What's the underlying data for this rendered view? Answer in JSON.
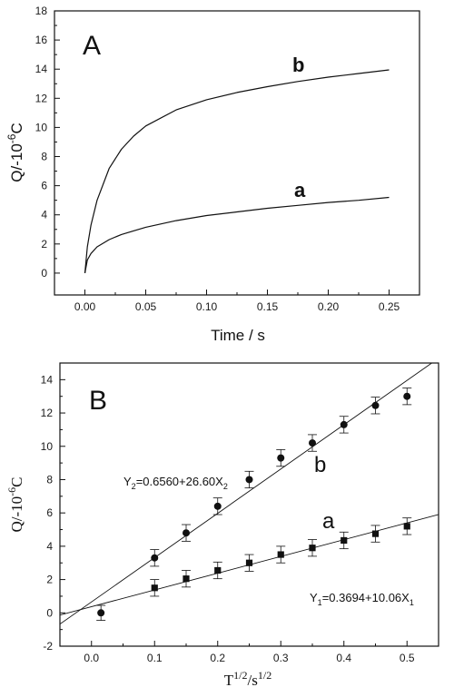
{
  "chart_data": [
    {
      "panel": "A",
      "type": "line",
      "xlabel": "Time / s",
      "ylabel": "Q/-10",
      "ylabel_exponent": "-6",
      "ylabel_unit": "C",
      "xlim": [
        -0.025,
        0.275
      ],
      "ylim": [
        -1.5,
        18
      ],
      "x_ticks": [
        0.0,
        0.05,
        0.1,
        0.15,
        0.2,
        0.25
      ],
      "x_tick_labels": [
        "0.00",
        "0.05",
        "0.10",
        "0.15",
        "0.20",
        "0.25"
      ],
      "y_ticks": [
        0,
        2,
        4,
        6,
        8,
        10,
        12,
        14,
        16,
        18
      ],
      "y_tick_labels": [
        "0",
        "2",
        "4",
        "6",
        "8",
        "10",
        "12",
        "14",
        "16",
        "18"
      ],
      "series": [
        {
          "name": "a",
          "x": [
            0,
            0.002,
            0.005,
            0.01,
            0.02,
            0.03,
            0.05,
            0.075,
            0.1,
            0.125,
            0.15,
            0.175,
            0.2,
            0.225,
            0.25
          ],
          "y": [
            0.0,
            0.9,
            1.35,
            1.8,
            2.3,
            2.65,
            3.15,
            3.6,
            3.95,
            4.2,
            4.45,
            4.65,
            4.85,
            5.0,
            5.2
          ]
        },
        {
          "name": "b",
          "x": [
            0,
            0.002,
            0.005,
            0.01,
            0.02,
            0.03,
            0.04,
            0.05,
            0.075,
            0.1,
            0.125,
            0.15,
            0.175,
            0.2,
            0.225,
            0.25
          ],
          "y": [
            0.0,
            1.8,
            3.3,
            5.0,
            7.2,
            8.5,
            9.4,
            10.1,
            11.2,
            11.9,
            12.4,
            12.8,
            13.15,
            13.45,
            13.7,
            13.95
          ]
        }
      ]
    },
    {
      "panel": "B",
      "type": "scatter",
      "xlabel": "T",
      "xlabel_sup1": "1/2",
      "xlabel_mid": "/s",
      "xlabel_sup2": "1/2",
      "ylabel": "Q/-10",
      "ylabel_exponent": "-6",
      "ylabel_unit": "C",
      "xlim": [
        -0.05,
        0.55
      ],
      "ylim": [
        -2,
        15
      ],
      "x_ticks": [
        0.0,
        0.1,
        0.2,
        0.3,
        0.4,
        0.5
      ],
      "x_tick_labels": [
        "0.0",
        "0.1",
        "0.2",
        "0.3",
        "0.4",
        "0.5"
      ],
      "y_ticks": [
        -2,
        0,
        2,
        4,
        6,
        8,
        10,
        12,
        14
      ],
      "y_tick_labels": [
        "-2",
        "0",
        "2",
        "4",
        "6",
        "8",
        "10",
        "12",
        "14"
      ],
      "series": [
        {
          "name": "a",
          "marker": "square",
          "x": [
            0.1,
            0.15,
            0.2,
            0.25,
            0.3,
            0.35,
            0.4,
            0.45,
            0.5
          ],
          "y": [
            1.5,
            2.05,
            2.55,
            3.0,
            3.5,
            3.9,
            4.35,
            4.75,
            5.2
          ],
          "error": 0.5,
          "fit": {
            "intercept": 0.3694,
            "slope": 10.06,
            "equation": "Y1=0.3694+10.06X1"
          }
        },
        {
          "name": "b",
          "marker": "circle",
          "x": [
            0.1,
            0.15,
            0.2,
            0.25,
            0.3,
            0.35,
            0.4,
            0.45,
            0.5
          ],
          "y": [
            3.3,
            4.8,
            6.4,
            8.0,
            9.3,
            10.2,
            11.3,
            12.45,
            13.0
          ],
          "error": 0.5,
          "fit": {
            "intercept": 0.656,
            "slope": 26.6,
            "equation": "Y2=0.6560+26.60X2"
          }
        }
      ],
      "shared_point": {
        "x": 0.015,
        "y": 0.0,
        "error": 0.45
      },
      "annotations": {
        "eq_a_main": "Y",
        "eq_a_sub1": "1",
        "eq_a_rest": "=0.3694+10.06X",
        "eq_a_sub2": "1",
        "eq_b_main": "Y",
        "eq_b_sub1": "2",
        "eq_b_rest": "=0.6560+26.60X",
        "eq_b_sub2": "2"
      }
    }
  ],
  "colors": {
    "ink": "#111111",
    "background": "#ffffff"
  }
}
